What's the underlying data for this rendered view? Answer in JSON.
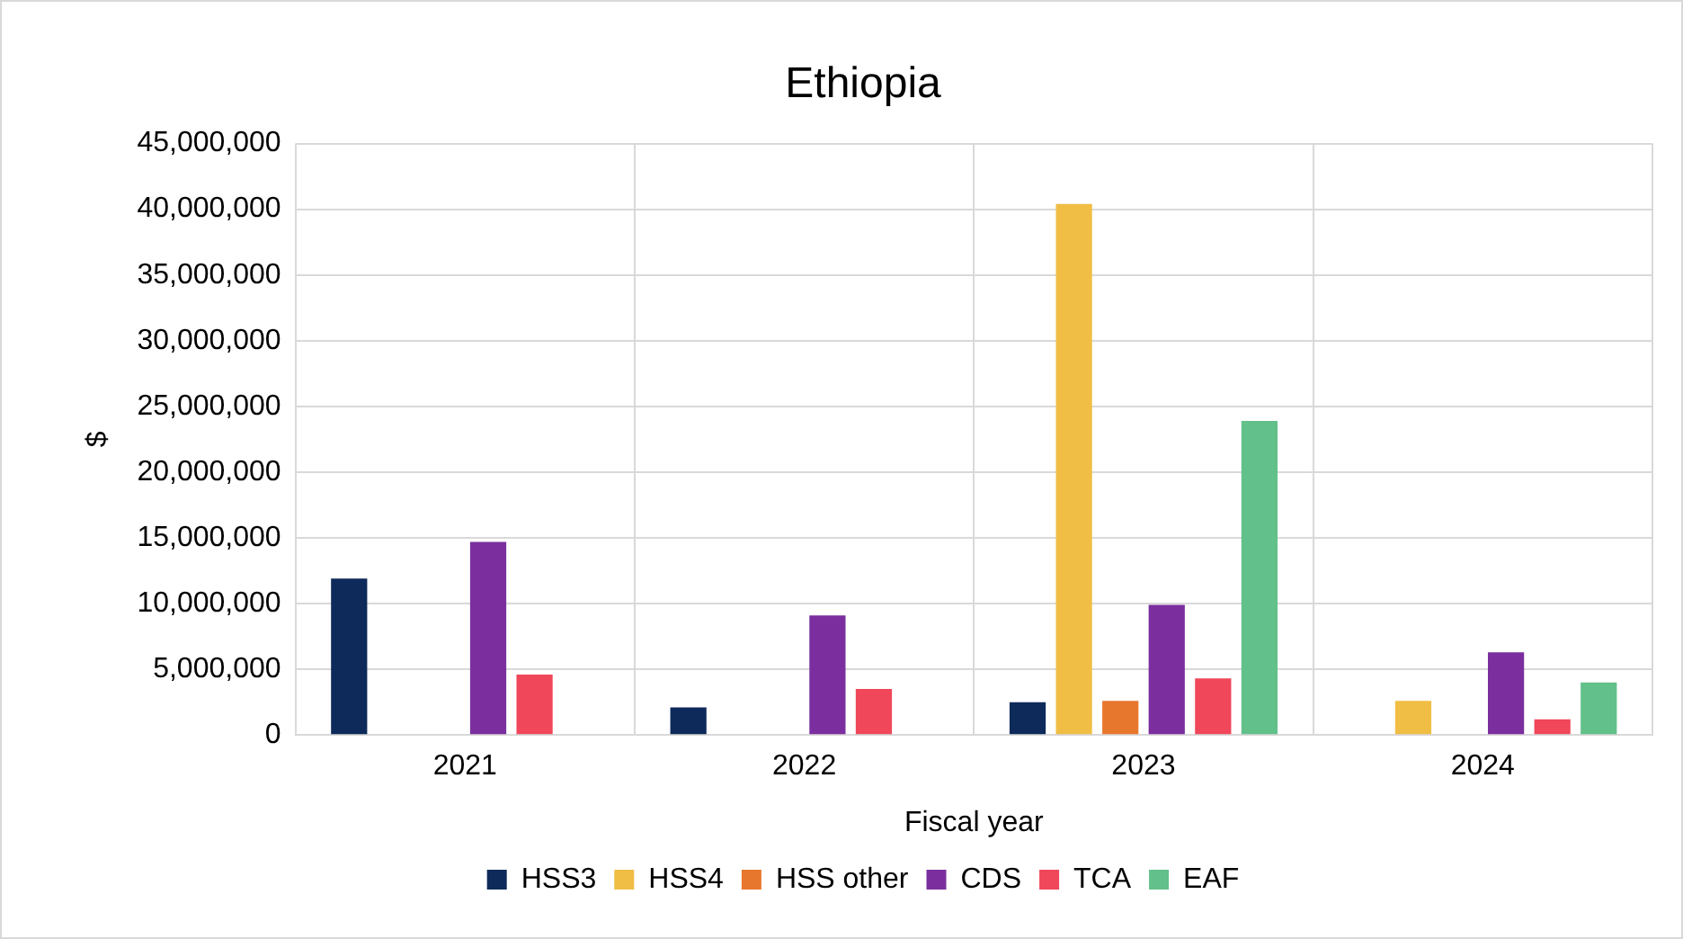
{
  "chart_data": {
    "type": "bar",
    "title": "Ethiopia",
    "xlabel": "Fiscal year",
    "ylabel": "$",
    "categories": [
      "2021",
      "2022",
      "2023",
      "2024"
    ],
    "series": [
      {
        "name": "HSS3",
        "color": "#0e2a5a",
        "values": [
          11900000,
          2100000,
          2500000,
          null
        ]
      },
      {
        "name": "HSS4",
        "color": "#f0bd45",
        "values": [
          null,
          null,
          40400000,
          2600000
        ]
      },
      {
        "name": "HSS other",
        "color": "#e8772e",
        "values": [
          null,
          null,
          2600000,
          null
        ]
      },
      {
        "name": "CDS",
        "color": "#7b2f9e",
        "values": [
          14700000,
          9100000,
          9900000,
          6300000
        ]
      },
      {
        "name": "TCA",
        "color": "#f0475a",
        "values": [
          4600000,
          3500000,
          4300000,
          1200000
        ]
      },
      {
        "name": "EAF",
        "color": "#62c08a",
        "values": [
          null,
          null,
          23900000,
          4000000
        ]
      }
    ],
    "ylim": [
      0,
      45000000
    ],
    "yticks": [
      {
        "value": 0,
        "label": "0"
      },
      {
        "value": 5000000,
        "label": "5,000,000"
      },
      {
        "value": 10000000,
        "label": "10,000,000"
      },
      {
        "value": 15000000,
        "label": "15,000,000"
      },
      {
        "value": 20000000,
        "label": "20,000,000"
      },
      {
        "value": 25000000,
        "label": "25,000,000"
      },
      {
        "value": 30000000,
        "label": "30,000,000"
      },
      {
        "value": 35000000,
        "label": "35,000,000"
      },
      {
        "value": 40000000,
        "label": "40,000,000"
      },
      {
        "value": 45000000,
        "label": "45,000,000"
      }
    ],
    "grid": true,
    "legend": "bottom"
  }
}
